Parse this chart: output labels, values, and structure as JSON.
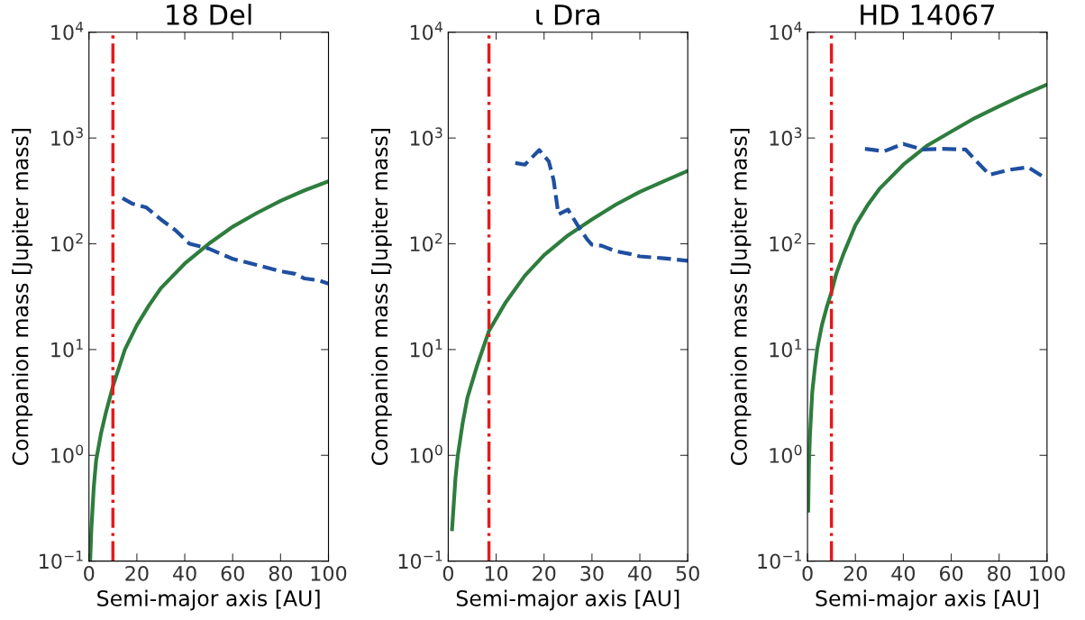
{
  "chart_data": [
    {
      "type": "line",
      "title": "18 Del",
      "xlabel": "Semi-major axis [AU]",
      "ylabel": "Companion mass [Jupiter mass]",
      "log": "y",
      "grid": false,
      "xlim": [
        0,
        100
      ],
      "xticks": [
        0,
        20,
        40,
        60,
        80,
        100
      ],
      "ylim": [
        0.1,
        10000
      ],
      "yticks": [
        {
          "value": 0.1,
          "label": "10$^{−1}$"
        },
        {
          "value": 1,
          "label": "10$^{0}$"
        },
        {
          "value": 10,
          "label": "10$^{1}$"
        },
        {
          "value": 100,
          "label": "10$^{2}$"
        },
        {
          "value": 1000,
          "label": "10$^{3}$"
        },
        {
          "value": 10000,
          "label": "10$^{4}$"
        }
      ],
      "series": [
        {
          "color": "#2e7d3e",
          "line_style": "solid",
          "x": [
            0.5,
            1,
            2,
            3,
            5,
            7,
            10,
            15,
            20,
            25,
            30,
            40,
            50,
            60,
            70,
            80,
            90,
            100
          ],
          "values": [
            0.1,
            0.2,
            0.5,
            0.9,
            1.6,
            2.5,
            4.5,
            10,
            17,
            26,
            38,
            65,
            100,
            145,
            195,
            255,
            320,
            390
          ]
        },
        {
          "color": "#1f4fa0",
          "line_style": "dashed",
          "x": [
            14,
            18,
            24,
            30,
            36,
            42,
            50,
            60,
            70,
            80,
            86,
            90,
            96,
            100
          ],
          "values": [
            270,
            240,
            220,
            170,
            135,
            100,
            90,
            72,
            63,
            55,
            52,
            47,
            45,
            42
          ]
        }
      ],
      "ref_lines": [
        {
          "axis": "x",
          "value": 10,
          "label": null,
          "color": "#e41a1c",
          "line_style": "dashdot"
        }
      ]
    },
    {
      "type": "line",
      "title": "ι Dra",
      "xlabel": "Semi-major axis [AU]",
      "ylabel": "Companion mass [Jupiter mass]",
      "log": "y",
      "grid": false,
      "xlim": [
        0,
        50
      ],
      "xticks": [
        0,
        10,
        20,
        30,
        40,
        50
      ],
      "ylim": [
        0.1,
        10000
      ],
      "yticks": [
        {
          "value": 0.1,
          "label": "10$^{−1}$"
        },
        {
          "value": 1,
          "label": "10$^{0}$"
        },
        {
          "value": 10,
          "label": "10$^{1}$"
        },
        {
          "value": 100,
          "label": "10$^{2}$"
        },
        {
          "value": 1000,
          "label": "10$^{3}$"
        },
        {
          "value": 10000,
          "label": "10$^{4}$"
        }
      ],
      "series": [
        {
          "color": "#2e7d3e",
          "line_style": "solid",
          "x": [
            0.8,
            1.5,
            2,
            3,
            4,
            6,
            8.5,
            12,
            16,
            20,
            25,
            30,
            35,
            40,
            45,
            50
          ],
          "values": [
            0.2,
            0.6,
            1.0,
            2,
            3.5,
            7,
            15,
            28,
            50,
            78,
            120,
            170,
            235,
            310,
            390,
            490
          ]
        },
        {
          "color": "#1f4fa0",
          "line_style": "dashed",
          "x": [
            14,
            16,
            19,
            21,
            22,
            23,
            25,
            27,
            29,
            30,
            32,
            35,
            38,
            40,
            45,
            50
          ],
          "values": [
            580,
            560,
            770,
            600,
            400,
            190,
            210,
            150,
            110,
            98,
            96,
            85,
            80,
            76,
            73,
            69
          ]
        }
      ],
      "ref_lines": [
        {
          "axis": "x",
          "value": 8.5,
          "label": null,
          "color": "#e41a1c",
          "line_style": "dashdot"
        }
      ]
    },
    {
      "type": "line",
      "title": "HD 14067",
      "xlabel": "Semi-major axis [AU]",
      "ylabel": "Companion mass [Jupiter mass]",
      "log": "y",
      "grid": false,
      "xlim": [
        0,
        100
      ],
      "xticks": [
        0,
        20,
        40,
        60,
        80,
        100
      ],
      "ylim": [
        0.1,
        10000
      ],
      "yticks": [
        {
          "value": 0.1,
          "label": "10$^{−1}$"
        },
        {
          "value": 1,
          "label": "10$^{0}$"
        },
        {
          "value": 10,
          "label": "10$^{1}$"
        },
        {
          "value": 100,
          "label": "10$^{2}$"
        },
        {
          "value": 1000,
          "label": "10$^{3}$"
        },
        {
          "value": 10000,
          "label": "10$^{4}$"
        }
      ],
      "series": [
        {
          "color": "#2e7d3e",
          "line_style": "solid",
          "x": [
            0.3,
            0.6,
            1,
            1.5,
            2,
            3,
            4,
            6,
            8,
            10,
            12,
            15,
            20,
            25,
            30,
            40,
            50,
            60,
            70,
            80,
            90,
            100
          ],
          "values": [
            0.3,
            0.8,
            1.5,
            2.5,
            4,
            6.5,
            10,
            17,
            25,
            35,
            52,
            80,
            150,
            230,
            330,
            560,
            850,
            1150,
            1550,
            2000,
            2550,
            3200
          ]
        },
        {
          "color": "#1f4fa0",
          "line_style": "dashed",
          "x": [
            24,
            32,
            40,
            48,
            56,
            66,
            70,
            76,
            84,
            92,
            100
          ],
          "values": [
            790,
            750,
            880,
            780,
            790,
            780,
            620,
            450,
            500,
            530,
            410
          ]
        }
      ],
      "ref_lines": [
        {
          "axis": "x",
          "value": 10,
          "label": null,
          "color": "#e41a1c",
          "line_style": "dashdot"
        }
      ]
    }
  ]
}
